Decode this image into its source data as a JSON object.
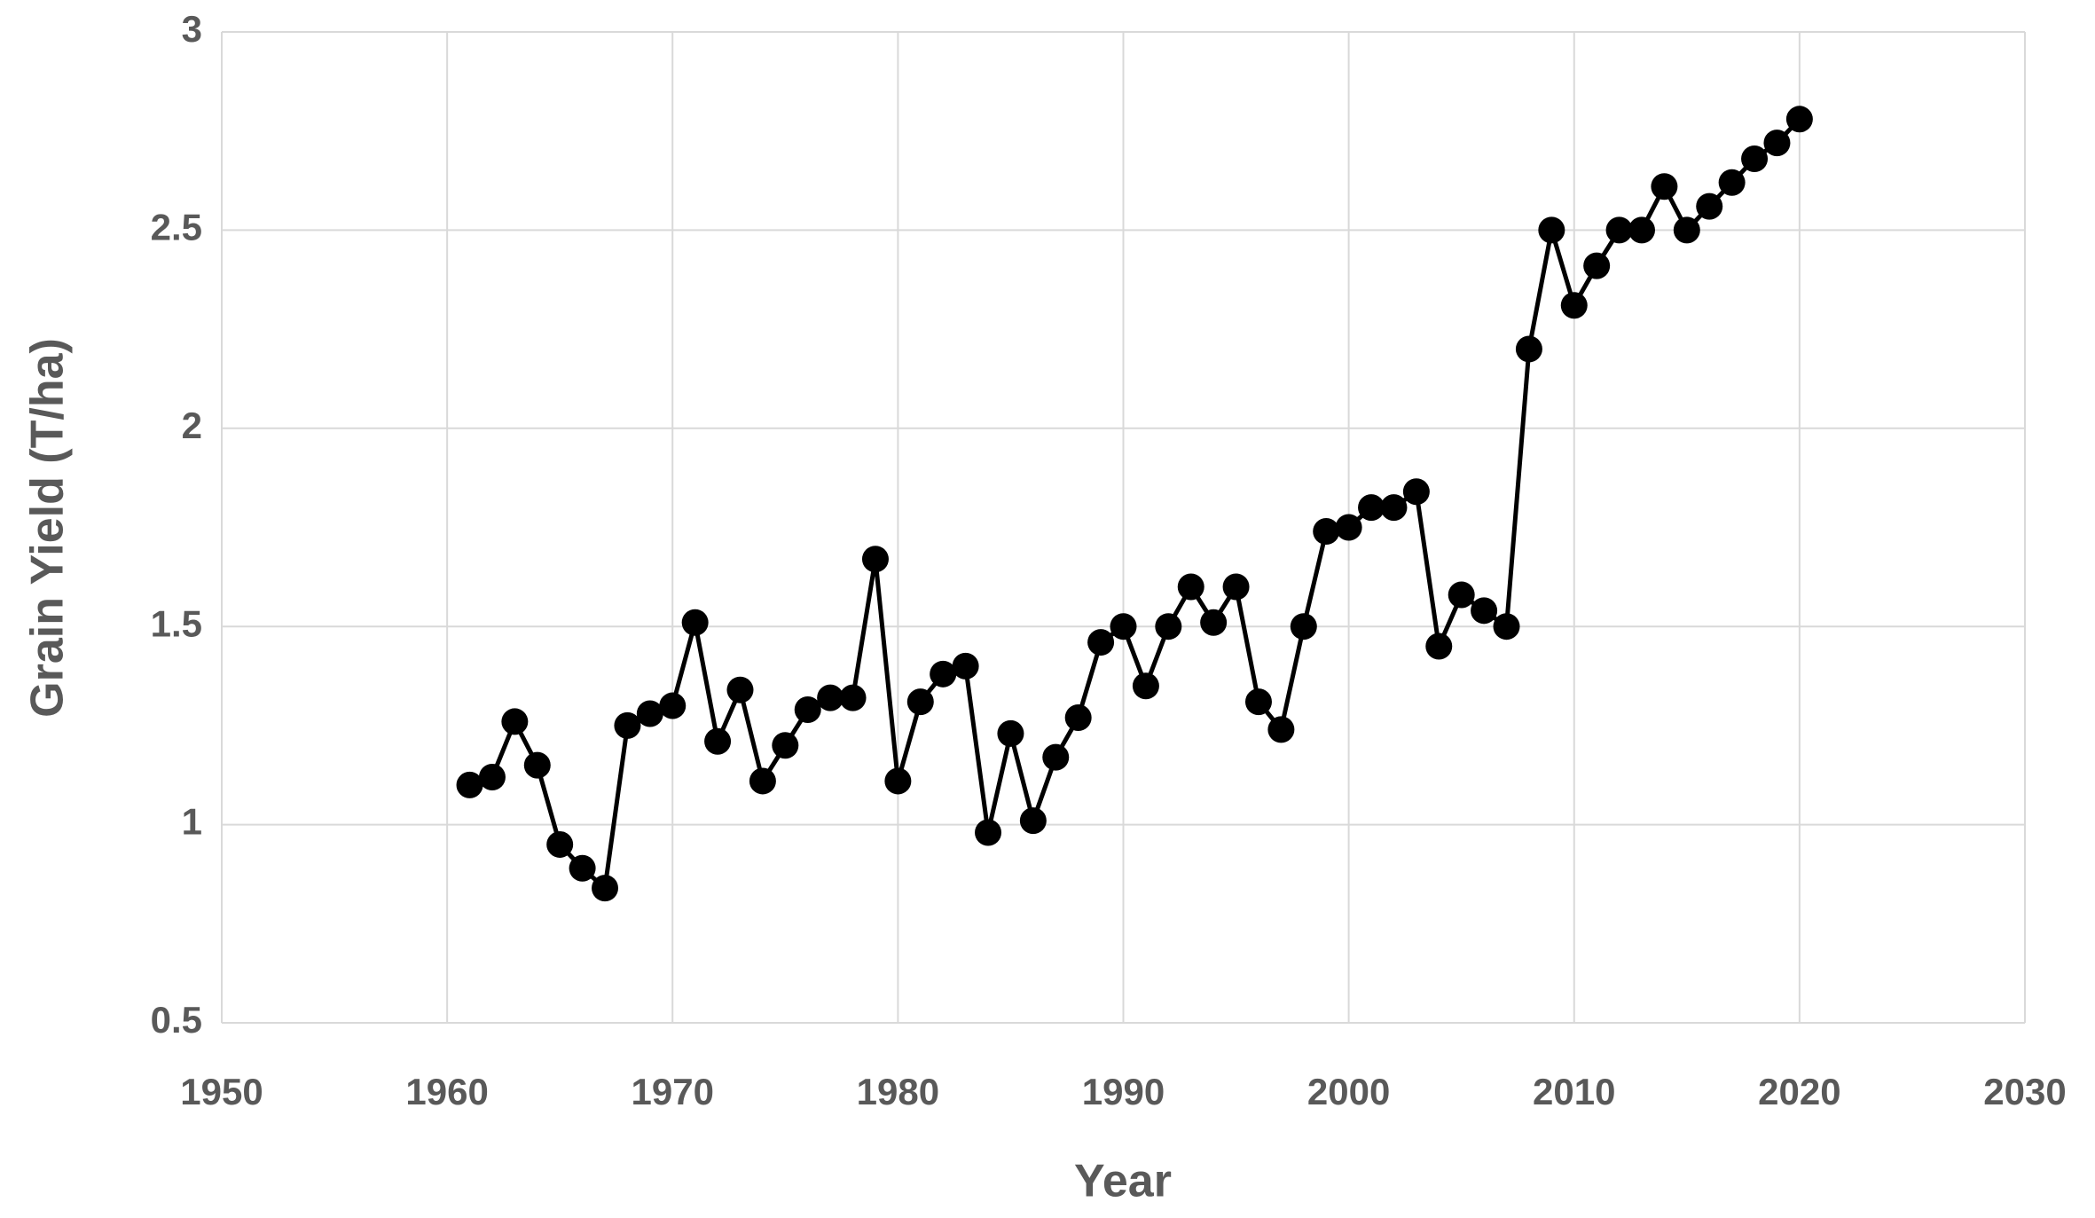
{
  "chart_data": {
    "type": "line",
    "x_label": "Year",
    "y_label": "Grain Yield (T/ha)",
    "x": [
      1961,
      1962,
      1963,
      1964,
      1965,
      1966,
      1967,
      1968,
      1969,
      1970,
      1971,
      1972,
      1973,
      1974,
      1975,
      1976,
      1977,
      1978,
      1979,
      1980,
      1981,
      1982,
      1983,
      1984,
      1985,
      1986,
      1987,
      1988,
      1989,
      1990,
      1991,
      1992,
      1993,
      1994,
      1995,
      1996,
      1997,
      1998,
      1999,
      2000,
      2001,
      2002,
      2003,
      2004,
      2005,
      2006,
      2007,
      2008,
      2009,
      2010,
      2011,
      2012,
      2013,
      2014,
      2015,
      2016,
      2017,
      2018,
      2019,
      2020
    ],
    "values": [
      1.1,
      1.12,
      1.26,
      1.15,
      0.95,
      0.89,
      0.84,
      1.25,
      1.28,
      1.3,
      1.51,
      1.21,
      1.34,
      1.11,
      1.2,
      1.29,
      1.32,
      1.32,
      1.67,
      1.11,
      1.31,
      1.38,
      1.4,
      0.98,
      1.23,
      1.01,
      1.17,
      1.27,
      1.46,
      1.5,
      1.35,
      1.5,
      1.6,
      1.51,
      1.6,
      1.31,
      1.24,
      1.5,
      1.74,
      1.75,
      1.8,
      1.8,
      1.84,
      1.45,
      1.58,
      1.54,
      1.5,
      2.2,
      2.5,
      2.31,
      2.41,
      2.5,
      2.5,
      2.61,
      2.5,
      2.56,
      2.62,
      2.68,
      2.72,
      2.78
    ],
    "color": "#000000",
    "markers": true,
    "grid": true,
    "xlim": [
      1950,
      2030
    ],
    "xticks": [
      1950,
      1960,
      1970,
      1980,
      1990,
      2000,
      2010,
      2020,
      2030
    ],
    "ylim": [
      0.5,
      3
    ],
    "yticks": [
      0.5,
      1,
      1.5,
      2,
      2.5,
      3
    ]
  }
}
